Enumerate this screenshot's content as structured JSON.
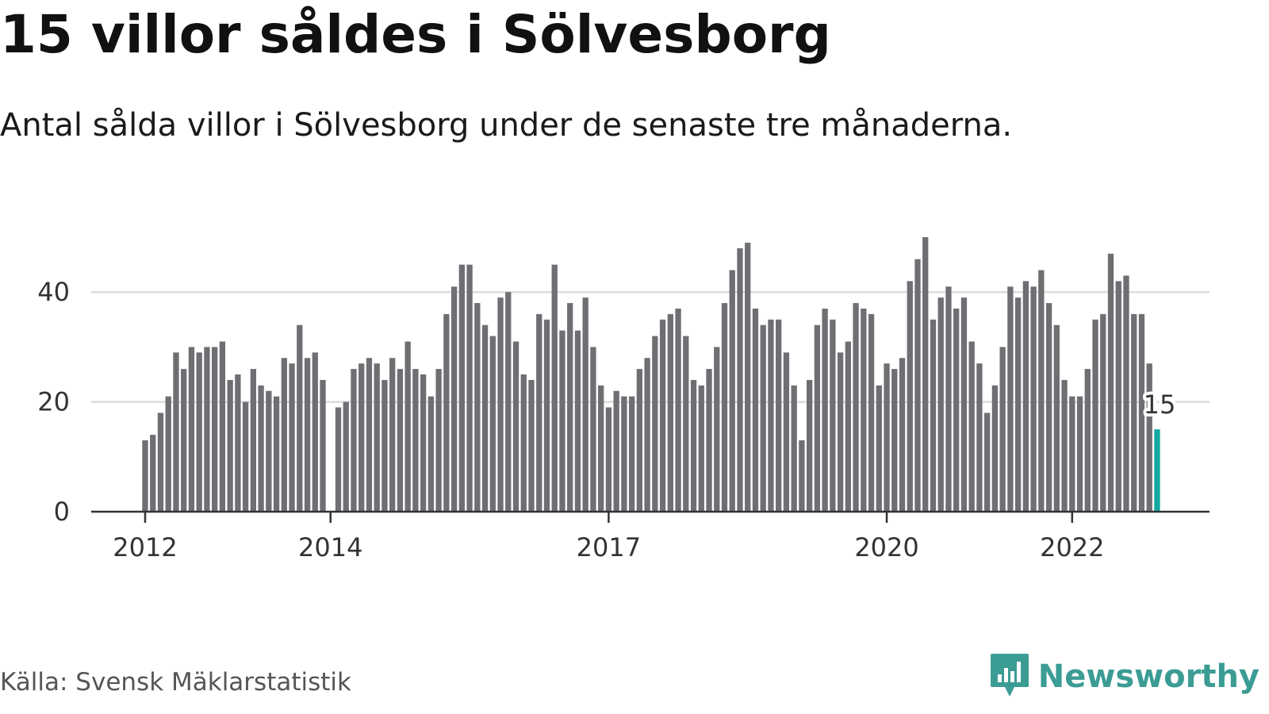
{
  "header": {
    "title": "15 villor såldes i Sölvesborg",
    "subtitle": "Antal sålda villor i Sölvesborg under de senaste tre månaderna."
  },
  "footer": {
    "source": "Källa: Svensk Mäklarstatistik",
    "brand": "Newsworthy"
  },
  "colors": {
    "bar": "#6f6e73",
    "highlight": "#14a9a1",
    "grid": "#dcdcdc",
    "axis": "#333333",
    "brand": "#3b9c94"
  },
  "icons": {
    "brand_logo": "bar-chart-speech-bubble-icon"
  },
  "chart_data": {
    "type": "bar",
    "title": "15 villor såldes i Sölvesborg",
    "xlabel": "",
    "ylabel": "",
    "ylim": [
      0,
      50
    ],
    "yticks": [
      0,
      20,
      40
    ],
    "grid": true,
    "x_start": "2012-01",
    "x_end": "2022-12",
    "xtick_labels": [
      "2012",
      "2014",
      "2017",
      "2020",
      "2022"
    ],
    "highlight_label": "15",
    "values": [
      13,
      14,
      18,
      21,
      29,
      26,
      30,
      29,
      30,
      30,
      31,
      24,
      25,
      20,
      26,
      23,
      22,
      21,
      28,
      27,
      34,
      28,
      29,
      24,
      null,
      19,
      20,
      26,
      27,
      28,
      27,
      24,
      28,
      26,
      31,
      26,
      25,
      21,
      26,
      36,
      41,
      45,
      45,
      38,
      34,
      32,
      39,
      40,
      31,
      25,
      24,
      36,
      35,
      45,
      33,
      38,
      33,
      39,
      30,
      23,
      19,
      22,
      21,
      21,
      26,
      28,
      32,
      35,
      36,
      37,
      32,
      24,
      23,
      26,
      30,
      38,
      44,
      48,
      49,
      37,
      34,
      35,
      35,
      29,
      23,
      13,
      24,
      34,
      37,
      35,
      29,
      31,
      38,
      37,
      36,
      23,
      27,
      26,
      28,
      42,
      46,
      50,
      35,
      39,
      41,
      37,
      39,
      31,
      27,
      18,
      23,
      30,
      41,
      39,
      42,
      41,
      44,
      38,
      34,
      24,
      21,
      21,
      26,
      35,
      36,
      47,
      42,
      43,
      36,
      36,
      27,
      15
    ]
  }
}
